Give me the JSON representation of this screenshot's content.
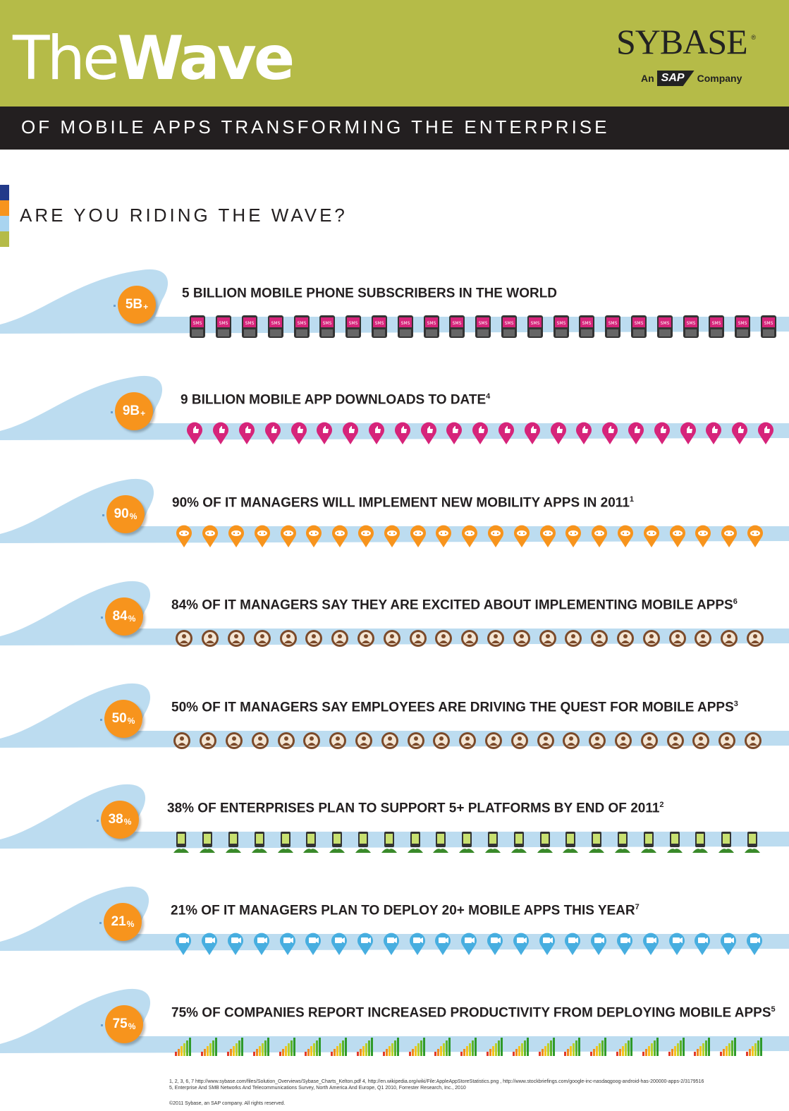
{
  "header": {
    "title_light": "The",
    "title_bold": "Wave",
    "subtitle": "OF MOBILE APPS TRANSFORMING THE ENTERPRISE",
    "logo": {
      "brand": "SYBASE",
      "registered": "®",
      "tag_prefix": "An",
      "tag_mark": "SAP",
      "tag_suffix": "Company"
    }
  },
  "question": "ARE YOU RIDING THE WAVE?",
  "colors": {
    "green": "#b5bb48",
    "dark": "#231f20",
    "orange": "#f7941d",
    "wave": "#bcdcf0",
    "pink": "#d6247a",
    "blue": "#47aee0",
    "brown": "#7b4a2a"
  },
  "stats": [
    {
      "badge": "5B",
      "suffix": "+",
      "text": "5 BILLION MOBILE PHONE SUBSCRIBERS IN THE WORLD",
      "note": "",
      "icon": "sms-phone-icon"
    },
    {
      "badge": "9B",
      "suffix": "+",
      "text": "9 BILLION MOBILE APP DOWNLOADS TO DATE",
      "note": "4",
      "icon": "thumbs-up-pin-icon"
    },
    {
      "badge": "90",
      "suffix": "%",
      "text": "90% OF IT MANAGERS WILL IMPLEMENT NEW MOBILITY APPS IN 2011",
      "note": "1",
      "icon": "game-controller-pin-icon"
    },
    {
      "badge": "84",
      "suffix": "%",
      "text": "84% OF IT MANAGERS SAY THEY ARE EXCITED ABOUT IMPLEMENTING MOBILE APPS",
      "note": "6",
      "icon": "manager-avatar-icon"
    },
    {
      "badge": "50",
      "suffix": "%",
      "text": "50% OF IT MANAGERS SAY EMPLOYEES ARE DRIVING THE QUEST FOR MOBILE APPS",
      "note": "3",
      "icon": "manager-avatar-icon"
    },
    {
      "badge": "38",
      "suffix": "%",
      "text": "38% OF ENTERPRISES PLAN TO SUPPORT 5+ PLATFORMS BY END OF 2011",
      "note": "2",
      "icon": "device-platform-icon"
    },
    {
      "badge": "21",
      "suffix": "%",
      "text": "21% OF IT MANAGERS PLAN TO DEPLOY 20+ MOBILE APPS THIS YEAR",
      "note": "7",
      "icon": "camera-pin-icon"
    },
    {
      "badge": "75",
      "suffix": "%",
      "text": "75% OF COMPANIES REPORT INCREASED PRODUCTIVITY FROM DEPLOYING MOBILE APPS",
      "note": "5",
      "icon": "signal-bars-icon"
    }
  ],
  "footnotes": {
    "line1": "1, 2, 3, 6, 7 http://www.sybase.com/files/Solution_Overviews/Sybase_Charts_Kelton.pdf   4, http://en.wikipedia.org/wiki/File:AppleAppStoreStatistics.png , http://www.stockbriefings.com/google-inc-nasdaqgoog-android-has-200000-apps-2/3179516",
    "line2": "5, Enterprise And SMB Networks And Telecommunications Survey, North America And Europe, Q1 2010, Forrester Research, Inc., 2010",
    "copyright": "©2011 Sybase, an SAP company. All rights reserved."
  }
}
